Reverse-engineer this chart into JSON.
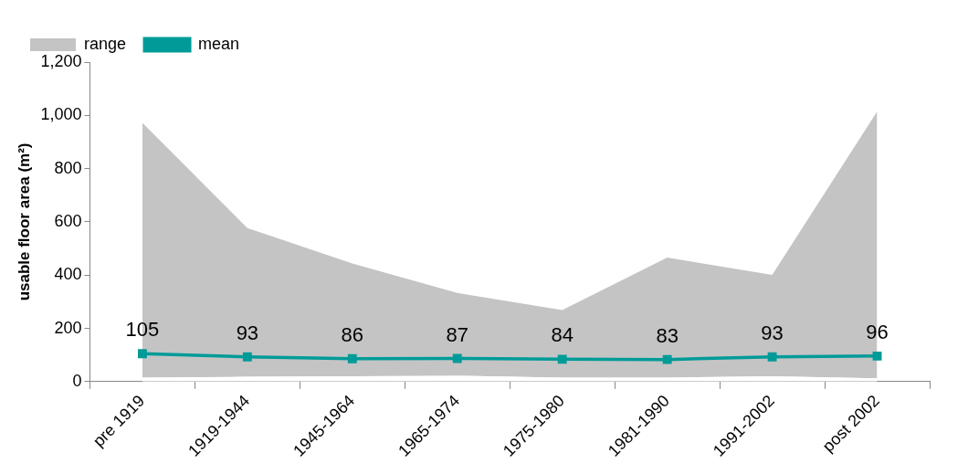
{
  "chart_data": {
    "type": "area",
    "categories": [
      "pre 1919",
      "1919-1944",
      "1945-1964",
      "1965-1974",
      "1975-1980",
      "1981-1990",
      "1991-2002",
      "post 2002"
    ],
    "ylabel": "usable floor area (m²)",
    "ylim": [
      0,
      1200
    ],
    "yticks": [
      0,
      {
        "value": 200,
        "label": "200"
      },
      {
        "value": 400,
        "label": "400"
      },
      {
        "value": 600,
        "label": "600"
      },
      {
        "value": 800,
        "label": "800"
      },
      {
        "value": 1000,
        "label": "1,000"
      },
      {
        "value": 1200,
        "label": "1,200"
      }
    ],
    "grid": false,
    "legend": "top left",
    "stacked": true,
    "series": [
      {
        "color": "#ffffff",
        "values": [
          15,
          18,
          20,
          22,
          15,
          15,
          20,
          12
        ]
      },
      {
        "name": "range",
        "color": "#c4c4c4",
        "values": [
          957,
          559,
          424,
          311,
          254,
          451,
          381,
          1003
        ]
      },
      {
        "name": "mean",
        "type": "line",
        "color": "#009b98",
        "marker": "square",
        "line_style": "solid",
        "values": [
          105,
          93,
          86,
          87,
          84,
          83,
          93,
          96
        ],
        "value_labels": [
          "105",
          "93",
          "86",
          "87",
          "84",
          "83",
          "93",
          "96"
        ]
      }
    ]
  }
}
